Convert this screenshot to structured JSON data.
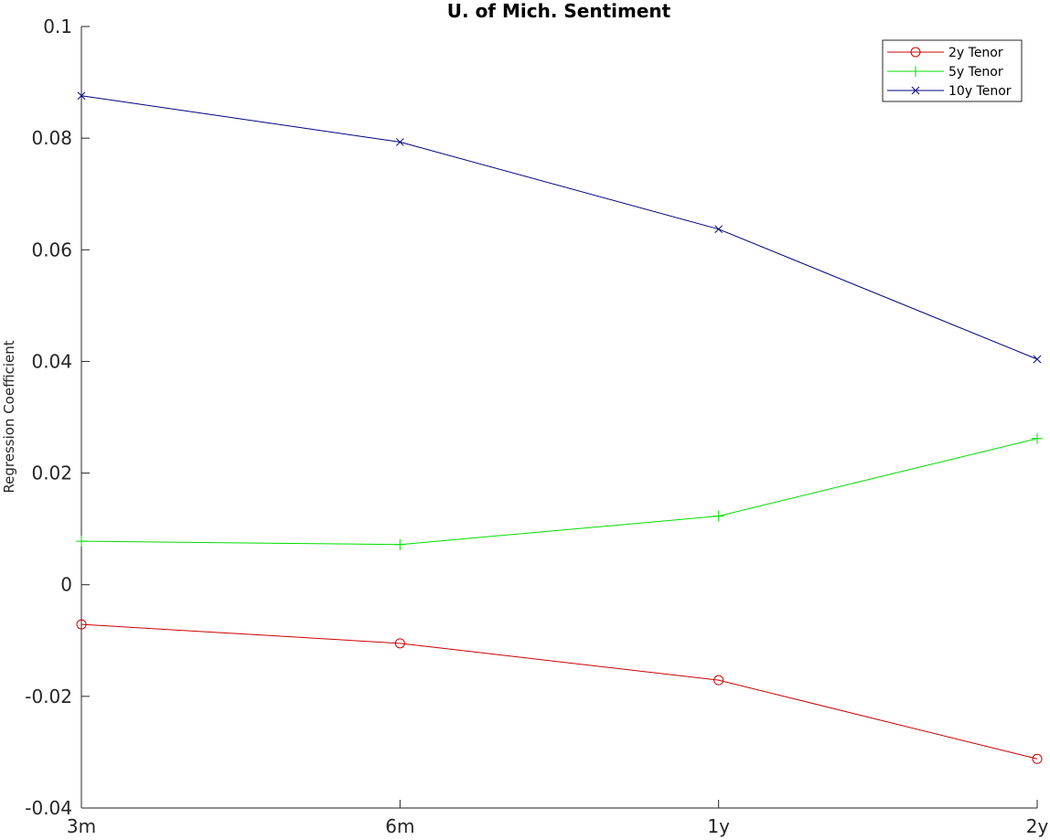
{
  "chart_data": {
    "type": "line",
    "title": "U. of Mich. Sentiment",
    "xlabel": "",
    "ylabel": "Regression Coefficient",
    "categories": [
      "3m",
      "6m",
      "1y",
      "2y"
    ],
    "ylim": [
      -0.04,
      0.1
    ],
    "yticks": [
      -0.04,
      -0.02,
      0,
      0.02,
      0.04,
      0.06,
      0.08,
      0.1
    ],
    "ytick_labels": [
      "-0.04",
      "-0.02",
      "0",
      "0.02",
      "0.04",
      "0.06",
      "0.08",
      "0.1"
    ],
    "grid": false,
    "legend_position": "top-right",
    "series": [
      {
        "name": "2y Tenor",
        "color": "#cc0000",
        "marker": "circle",
        "values": [
          -0.0071,
          -0.0105,
          -0.0171,
          -0.0312
        ]
      },
      {
        "name": "5y Tenor",
        "color": "#00dd00",
        "marker": "plus",
        "values": [
          0.0078,
          0.0072,
          0.0123,
          0.0262
        ]
      },
      {
        "name": "10y Tenor",
        "color": "#000080",
        "marker": "x",
        "values": [
          0.0876,
          0.0793,
          0.0637,
          0.0404
        ]
      }
    ]
  }
}
